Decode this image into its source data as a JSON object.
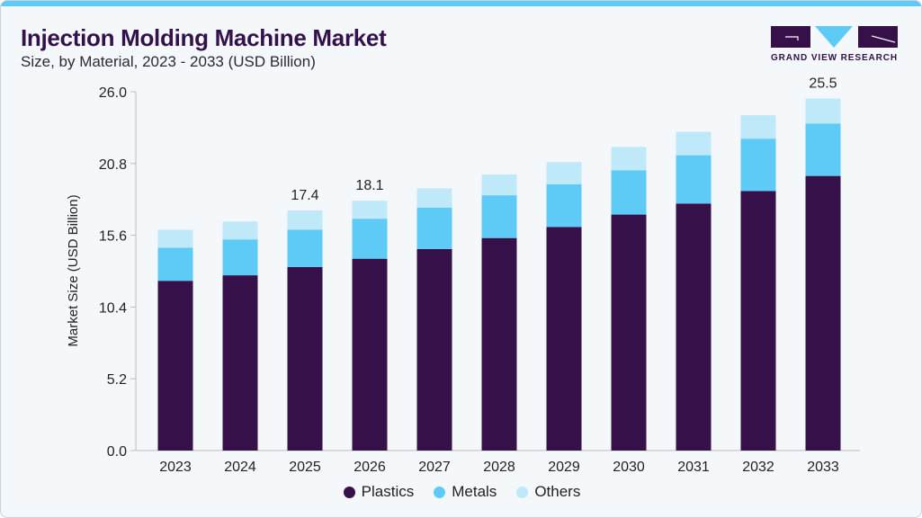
{
  "header": {
    "title": "Injection Molding Machine Market",
    "subtitle": "Size, by Material, 2023 - 2033 (USD Billion)"
  },
  "logo": {
    "text": "GRAND VIEW RESEARCH"
  },
  "colors": {
    "Plastics": "#361049",
    "Metals": "#5ecbf6",
    "Others": "#bfe9f9",
    "accent": "#5ecbf6"
  },
  "chart_data": {
    "type": "bar",
    "stacked": true,
    "title": "Injection Molding Machine Market",
    "subtitle": "Size, by Material, 2023 - 2033 (USD Billion)",
    "xlabel": "",
    "ylabel": "Market Size (USD Billion)",
    "ylim": [
      0,
      26
    ],
    "yticks": [
      "0.0",
      "5.2",
      "10.4",
      "15.6",
      "20.8",
      "26.0"
    ],
    "grid": false,
    "legend": "bottom",
    "categories": [
      "2023",
      "2024",
      "2025",
      "2026",
      "2027",
      "2028",
      "2029",
      "2030",
      "2031",
      "2032",
      "2033"
    ],
    "series": [
      {
        "name": "Plastics",
        "values": [
          12.3,
          12.7,
          13.3,
          13.9,
          14.6,
          15.4,
          16.2,
          17.1,
          17.9,
          18.8,
          19.9
        ]
      },
      {
        "name": "Metals",
        "values": [
          2.4,
          2.6,
          2.7,
          2.9,
          3.0,
          3.1,
          3.1,
          3.2,
          3.5,
          3.8,
          3.8
        ]
      },
      {
        "name": "Others",
        "values": [
          1.3,
          1.3,
          1.4,
          1.3,
          1.4,
          1.5,
          1.6,
          1.7,
          1.7,
          1.7,
          1.8
        ]
      }
    ],
    "data_labels": [
      {
        "category": "2025",
        "text": "17.4"
      },
      {
        "category": "2026",
        "text": "18.1"
      },
      {
        "category": "2033",
        "text": "25.5"
      }
    ]
  }
}
